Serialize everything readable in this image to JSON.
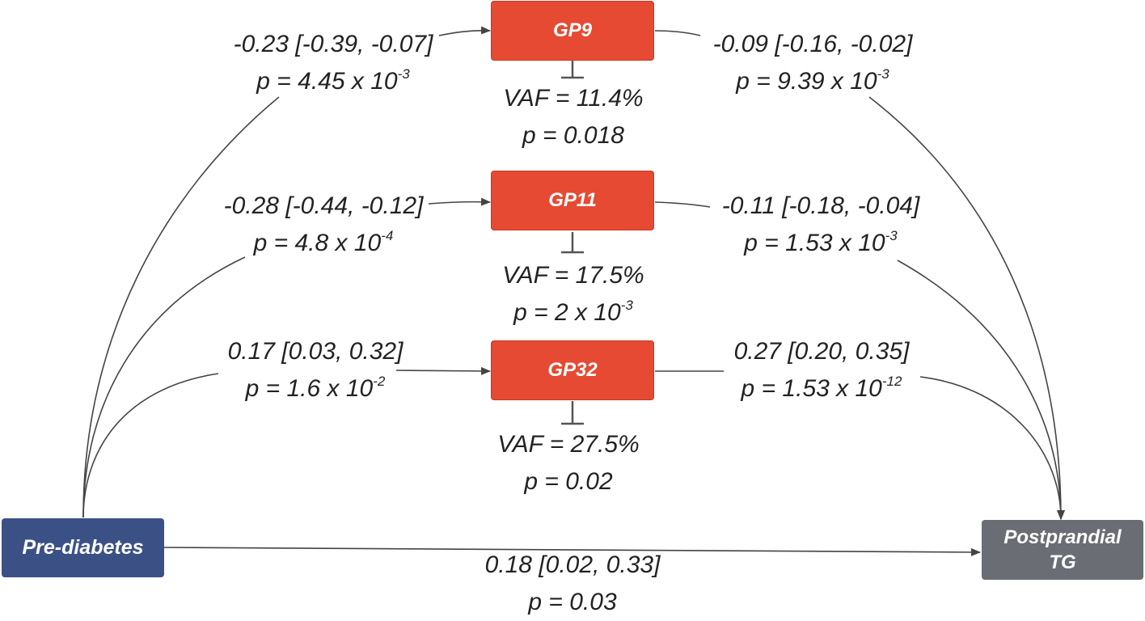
{
  "nodes": {
    "exposure": "Pre-diabetes",
    "outcome": [
      "Postprandial",
      "TG"
    ],
    "mediators": [
      "GP9",
      "GP11",
      "GP32"
    ]
  },
  "paths": {
    "gp9": {
      "a_est": "-0.23 [-0.39, -0.07]",
      "a_p": "p = 4.45 x 10",
      "a_exp": "-3",
      "b_est": "-0.09 [-0.16, -0.02]",
      "b_p": "p = 9.39 x 10",
      "b_exp": "-3",
      "vaf": "VAF = 11.4%",
      "vaf_p": "p = 0.018"
    },
    "gp11": {
      "a_est": "-0.28 [-0.44, -0.12]",
      "a_p": "p = 4.8 x 10",
      "a_exp": "-4",
      "b_est": "-0.11 [-0.18, -0.04]",
      "b_p": "p = 1.53 x 10",
      "b_exp": "-3",
      "vaf": "VAF = 17.5%",
      "vaf_p": "p = 2 x 10",
      "vaf_exp": "-3"
    },
    "gp32": {
      "a_est": "0.17 [0.03, 0.32]",
      "a_p": "p = 1.6 x 10",
      "a_exp": "-2",
      "b_est": "0.27 [0.20, 0.35]",
      "b_p": "p = 1.53 x 10",
      "b_exp": "-12",
      "vaf": "VAF = 27.5%",
      "vaf_p": "p = 0.02"
    },
    "direct": {
      "est": "0.18 [0.02, 0.33]",
      "p": "p = 0.03"
    }
  },
  "colors": {
    "mediator_fill": "#e64a33",
    "exposure_fill": "#3b5186",
    "outcome_fill": "#6a6d73",
    "line": "#333333",
    "text": "#222222"
  }
}
